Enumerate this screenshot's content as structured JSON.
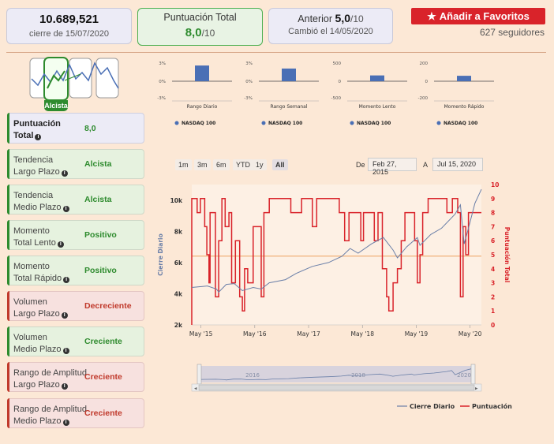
{
  "header": {
    "price": "10.689,521",
    "price_date": "cierre de 15/07/2020",
    "score_title": "Puntuación Total",
    "score_value": "8,0",
    "score_max": "/10",
    "prev_label": "Anterior",
    "prev_value": "5,0",
    "prev_max": "/10",
    "prev_changed": "Cambió el 14/05/2020",
    "fav_label": "Añadir a Favoritos",
    "followers": "627 seguidores"
  },
  "trend_badge": "Alcista",
  "indicators": [
    {
      "line1": "Puntuación",
      "line2": "Total",
      "value": "8,0",
      "style": "b"
    },
    {
      "line1": "Tendencia",
      "line2": "Largo Plazo",
      "value": "Alcista",
      "style": "g"
    },
    {
      "line1": "Tendencia",
      "line2": "Medio Plazo",
      "value": "Alcista",
      "style": "g"
    },
    {
      "line1": "Momento",
      "line2": "Total Lento",
      "value": "Positivo",
      "style": "g"
    },
    {
      "line1": "Momento",
      "line2": "Total Rápido",
      "value": "Positivo",
      "style": "g"
    },
    {
      "line1": "Volumen",
      "line2": "Largo Plazo",
      "value": "Decreciente",
      "style": "r"
    },
    {
      "line1": "Volumen",
      "line2": "Medio Plazo",
      "value": "Creciente",
      "style": "g"
    },
    {
      "line1": "Rango de Amplitud",
      "line2": "Largo Plazo",
      "value": "Creciente",
      "style": "r"
    },
    {
      "line1": "Rango de Amplitud",
      "line2": "Medio Plazo",
      "value": "Creciente",
      "style": "r"
    }
  ],
  "range_buttons": [
    "1m",
    "3m",
    "6m",
    "YTD",
    "1y",
    "All"
  ],
  "date_range": {
    "from_label": "De",
    "from": "Feb 27, 2015",
    "to_label": "A",
    "to": "Jul 15, 2020"
  },
  "colors": {
    "price_line": "#6a7fa8",
    "score_line": "#d9232a",
    "bar": "#4a6fb5",
    "threshold": "#f0b27a"
  },
  "chart_data": [
    {
      "type": "bar",
      "title": "Rango Diario",
      "series": [
        {
          "name": "NASDAQ 100",
          "values": [
            2.6
          ]
        }
      ],
      "yticks": [
        "3%",
        "0%",
        "-3%"
      ],
      "ylim": [
        -3,
        3
      ]
    },
    {
      "type": "bar",
      "title": "Rango Semanal",
      "series": [
        {
          "name": "NASDAQ 100",
          "values": [
            2.1
          ]
        }
      ],
      "yticks": [
        "3%",
        "0%",
        "-3%"
      ],
      "ylim": [
        -3,
        3
      ]
    },
    {
      "type": "bar",
      "title": "Momento Lento",
      "series": [
        {
          "name": "NASDAQ 100",
          "values": [
            160
          ]
        }
      ],
      "yticks": [
        "500",
        "0",
        "-500"
      ],
      "ylim": [
        -500,
        500
      ]
    },
    {
      "type": "bar",
      "title": "Momento Rápido",
      "series": [
        {
          "name": "NASDAQ 100",
          "values": [
            60
          ]
        }
      ],
      "yticks": [
        "200",
        "0",
        "-200"
      ],
      "ylim": [
        -200,
        200
      ]
    },
    {
      "type": "line",
      "title": "",
      "ylabel": "Cierre Diario",
      "y2label": "Puntuación Total",
      "x_ticks": [
        "May '15",
        "May '16",
        "May '17",
        "May '18",
        "May '19",
        "May '20"
      ],
      "y_ticks": [
        "2k",
        "4k",
        "6k",
        "8k",
        "10k"
      ],
      "y2_ticks": [
        "0",
        "1",
        "2",
        "3",
        "4",
        "5",
        "6",
        "7",
        "8",
        "9",
        "10"
      ],
      "ylim": [
        2000,
        11000
      ],
      "y2lim": [
        0,
        10
      ],
      "xlim": [
        2015.16,
        2020.54
      ],
      "threshold": 4.9,
      "series": [
        {
          "name": "Cierre Diario",
          "points": [
            [
              2015.16,
              4400
            ],
            [
              2015.45,
              4500
            ],
            [
              2015.62,
              4300
            ],
            [
              2015.66,
              4100
            ],
            [
              2015.8,
              4600
            ],
            [
              2015.95,
              4650
            ],
            [
              2016.1,
              4200
            ],
            [
              2016.3,
              4400
            ],
            [
              2016.45,
              4300
            ],
            [
              2016.6,
              4700
            ],
            [
              2016.9,
              4900
            ],
            [
              2017.1,
              5300
            ],
            [
              2017.4,
              5750
            ],
            [
              2017.7,
              6000
            ],
            [
              2017.95,
              6400
            ],
            [
              2018.1,
              6900
            ],
            [
              2018.25,
              6600
            ],
            [
              2018.5,
              7200
            ],
            [
              2018.72,
              7600
            ],
            [
              2018.9,
              6800
            ],
            [
              2018.98,
              6300
            ],
            [
              2019.15,
              7000
            ],
            [
              2019.35,
              7600
            ],
            [
              2019.4,
              7100
            ],
            [
              2019.6,
              7800
            ],
            [
              2019.8,
              8200
            ],
            [
              2020.05,
              9100
            ],
            [
              2020.15,
              9700
            ],
            [
              2020.22,
              7200
            ],
            [
              2020.3,
              8200
            ],
            [
              2020.42,
              9800
            ],
            [
              2020.54,
              10690
            ]
          ]
        },
        {
          "name": "Puntuación",
          "points": [
            [
              2015.16,
              0
            ],
            [
              2015.16,
              9
            ],
            [
              2015.26,
              9
            ],
            [
              2015.26,
              8
            ],
            [
              2015.32,
              8
            ],
            [
              2015.32,
              9
            ],
            [
              2015.4,
              9
            ],
            [
              2015.4,
              7
            ],
            [
              2015.44,
              7
            ],
            [
              2015.44,
              5
            ],
            [
              2015.48,
              5
            ],
            [
              2015.48,
              3
            ],
            [
              2015.5,
              3
            ],
            [
              2015.5,
              8
            ],
            [
              2015.6,
              8
            ],
            [
              2015.6,
              2
            ],
            [
              2015.66,
              2
            ],
            [
              2015.66,
              6
            ],
            [
              2015.72,
              6
            ],
            [
              2015.72,
              9
            ],
            [
              2015.78,
              9
            ],
            [
              2015.78,
              7
            ],
            [
              2015.85,
              7
            ],
            [
              2015.85,
              8
            ],
            [
              2015.9,
              8
            ],
            [
              2015.9,
              3
            ],
            [
              2015.97,
              3
            ],
            [
              2015.97,
              6
            ],
            [
              2016.05,
              6
            ],
            [
              2016.05,
              2
            ],
            [
              2016.1,
              2
            ],
            [
              2016.1,
              1
            ],
            [
              2016.14,
              1
            ],
            [
              2016.14,
              4
            ],
            [
              2016.2,
              4
            ],
            [
              2016.2,
              3
            ],
            [
              2016.3,
              3
            ],
            [
              2016.3,
              7
            ],
            [
              2016.45,
              7
            ],
            [
              2016.45,
              2
            ],
            [
              2016.5,
              2
            ],
            [
              2016.5,
              8
            ],
            [
              2016.6,
              8
            ],
            [
              2016.6,
              9
            ],
            [
              2017.0,
              9
            ],
            [
              2017.0,
              8
            ],
            [
              2017.2,
              8
            ],
            [
              2017.2,
              9
            ],
            [
              2017.4,
              9
            ],
            [
              2017.4,
              7
            ],
            [
              2017.48,
              7
            ],
            [
              2017.48,
              9
            ],
            [
              2017.9,
              9
            ],
            [
              2017.9,
              8
            ],
            [
              2018.0,
              8
            ],
            [
              2018.0,
              6
            ],
            [
              2018.08,
              6
            ],
            [
              2018.08,
              8
            ],
            [
              2018.3,
              8
            ],
            [
              2018.3,
              6
            ],
            [
              2018.35,
              6
            ],
            [
              2018.35,
              8
            ],
            [
              2018.55,
              8
            ],
            [
              2018.55,
              6
            ],
            [
              2018.62,
              6
            ],
            [
              2018.62,
              8
            ],
            [
              2018.7,
              8
            ],
            [
              2018.7,
              4
            ],
            [
              2018.78,
              4
            ],
            [
              2018.78,
              2
            ],
            [
              2018.82,
              2
            ],
            [
              2018.82,
              1
            ],
            [
              2018.9,
              1
            ],
            [
              2018.9,
              3
            ],
            [
              2018.98,
              3
            ],
            [
              2018.98,
              4
            ],
            [
              2019.05,
              4
            ],
            [
              2019.05,
              6
            ],
            [
              2019.12,
              6
            ],
            [
              2019.12,
              8
            ],
            [
              2019.3,
              8
            ],
            [
              2019.3,
              6
            ],
            [
              2019.35,
              6
            ],
            [
              2019.35,
              3
            ],
            [
              2019.4,
              3
            ],
            [
              2019.4,
              5
            ],
            [
              2019.45,
              5
            ],
            [
              2019.45,
              8
            ],
            [
              2019.55,
              8
            ],
            [
              2019.55,
              9
            ],
            [
              2019.9,
              9
            ],
            [
              2019.9,
              8
            ],
            [
              2020.0,
              8
            ],
            [
              2020.0,
              9
            ],
            [
              2020.1,
              9
            ],
            [
              2020.1,
              8
            ],
            [
              2020.15,
              8
            ],
            [
              2020.15,
              2
            ],
            [
              2020.2,
              2
            ],
            [
              2020.2,
              7
            ],
            [
              2020.25,
              7
            ],
            [
              2020.25,
              5
            ],
            [
              2020.3,
              5
            ],
            [
              2020.3,
              8
            ],
            [
              2020.54,
              8
            ]
          ]
        }
      ],
      "navigator": {
        "ticks": [
          "2016",
          "2018",
          "2020"
        ]
      },
      "legend": [
        "Cierre Diario",
        "Puntuación"
      ]
    }
  ]
}
